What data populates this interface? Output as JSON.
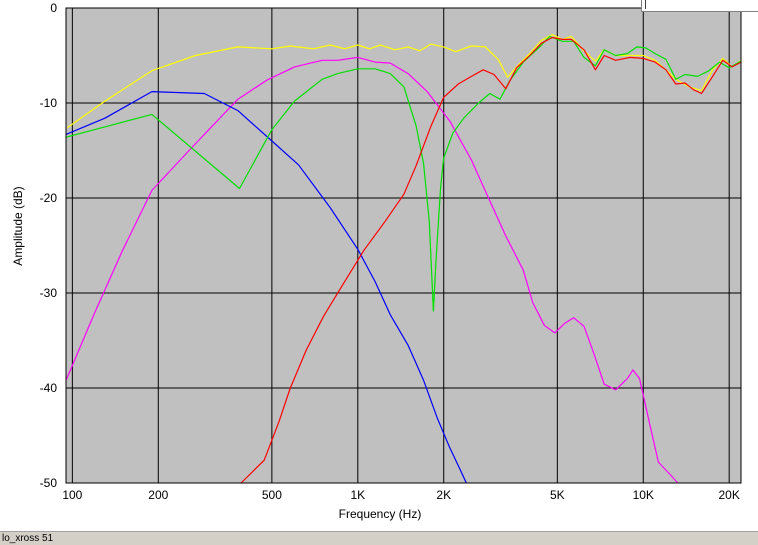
{
  "status": {
    "text": "lo_xross 51"
  },
  "chart_data": {
    "type": "line",
    "xlabel": "Frequency (Hz)",
    "ylabel": "Amplitude (dB)",
    "xscale": "log",
    "xlim": [
      95,
      22000
    ],
    "ylim": [
      -50,
      0
    ],
    "grid": true,
    "background": "#c0c0c0",
    "x_ticks": [
      {
        "value": 100,
        "label": "100"
      },
      {
        "value": 200,
        "label": "200"
      },
      {
        "value": 500,
        "label": "500"
      },
      {
        "value": 1000,
        "label": "1K"
      },
      {
        "value": 2000,
        "label": "2K"
      },
      {
        "value": 5000,
        "label": "5K"
      },
      {
        "value": 10000,
        "label": "10K"
      },
      {
        "value": 20000,
        "label": "20K"
      }
    ],
    "y_ticks": [
      {
        "value": 0,
        "label": "0"
      },
      {
        "value": -10,
        "label": "-10"
      },
      {
        "value": -20,
        "label": "-20"
      },
      {
        "value": -30,
        "label": "-30"
      },
      {
        "value": -40,
        "label": "-40"
      },
      {
        "value": -50,
        "label": "-50"
      }
    ],
    "series": [
      {
        "color": "#ffff00",
        "points": [
          [
            96,
            -12.6
          ],
          [
            130,
            -9.8
          ],
          [
            190,
            -6.6
          ],
          [
            270,
            -5.0
          ],
          [
            380,
            -4.1
          ],
          [
            500,
            -4.3
          ],
          [
            580,
            -4.0
          ],
          [
            700,
            -4.3
          ],
          [
            800,
            -3.9
          ],
          [
            900,
            -4.3
          ],
          [
            1000,
            -3.9
          ],
          [
            1100,
            -4.3
          ],
          [
            1200,
            -3.9
          ],
          [
            1350,
            -4.4
          ],
          [
            1500,
            -4.1
          ],
          [
            1650,
            -4.5
          ],
          [
            1800,
            -3.8
          ],
          [
            2000,
            -4.1
          ],
          [
            2200,
            -4.6
          ],
          [
            2500,
            -4.0
          ],
          [
            2800,
            -4.1
          ],
          [
            3100,
            -5.4
          ],
          [
            3350,
            -7.3
          ],
          [
            3600,
            -6.2
          ],
          [
            4000,
            -4.8
          ],
          [
            4400,
            -3.4
          ],
          [
            4800,
            -2.8
          ],
          [
            5200,
            -3.3
          ],
          [
            5600,
            -3.0
          ],
          [
            6200,
            -4.5
          ],
          [
            6800,
            -5.6
          ],
          [
            7300,
            -4.4
          ],
          [
            8000,
            -5.0
          ],
          [
            9000,
            -5.0
          ],
          [
            10000,
            -5.0
          ],
          [
            11000,
            -5.5
          ],
          [
            12000,
            -6.5
          ],
          [
            13000,
            -7.5
          ],
          [
            14500,
            -8.3
          ],
          [
            16000,
            -8.7
          ],
          [
            17500,
            -6.5
          ],
          [
            19000,
            -5.3
          ],
          [
            20500,
            -6.2
          ],
          [
            22000,
            -5.5
          ]
        ]
      },
      {
        "color": "#ff00ff",
        "points": [
          [
            95,
            -39.2
          ],
          [
            120,
            -32.0
          ],
          [
            150,
            -25.5
          ],
          [
            190,
            -19.2
          ],
          [
            260,
            -14.8
          ],
          [
            380,
            -9.6
          ],
          [
            480,
            -7.6
          ],
          [
            600,
            -6.2
          ],
          [
            750,
            -5.5
          ],
          [
            850,
            -5.5
          ],
          [
            1000,
            -5.2
          ],
          [
            1150,
            -5.7
          ],
          [
            1300,
            -5.8
          ],
          [
            1500,
            -6.9
          ],
          [
            1750,
            -8.8
          ],
          [
            2100,
            -11.9
          ],
          [
            2500,
            -16.0
          ],
          [
            2900,
            -20.3
          ],
          [
            3300,
            -24.0
          ],
          [
            3800,
            -27.6
          ],
          [
            4100,
            -31.0
          ],
          [
            4500,
            -33.4
          ],
          [
            4900,
            -34.2
          ],
          [
            5300,
            -33.2
          ],
          [
            5700,
            -32.6
          ],
          [
            6200,
            -33.5
          ],
          [
            6700,
            -36.3
          ],
          [
            7300,
            -39.6
          ],
          [
            8000,
            -40.2
          ],
          [
            8800,
            -39.0
          ],
          [
            9200,
            -38.1
          ],
          [
            9700,
            -39.0
          ],
          [
            10500,
            -43.6
          ],
          [
            11300,
            -47.8
          ],
          [
            12500,
            -49.2
          ],
          [
            13200,
            -50.0
          ]
        ]
      },
      {
        "color": "#0000ff",
        "points": [
          [
            95,
            -13.3
          ],
          [
            130,
            -11.6
          ],
          [
            190,
            -8.8
          ],
          [
            290,
            -9.0
          ],
          [
            380,
            -10.8
          ],
          [
            500,
            -14.0
          ],
          [
            620,
            -16.5
          ],
          [
            800,
            -21.0
          ],
          [
            1000,
            -25.4
          ],
          [
            1150,
            -28.8
          ],
          [
            1300,
            -32.3
          ],
          [
            1500,
            -35.5
          ],
          [
            1700,
            -39.2
          ],
          [
            1900,
            -43.2
          ],
          [
            2100,
            -46.3
          ],
          [
            2300,
            -48.8
          ],
          [
            2400,
            -50.0
          ]
        ]
      },
      {
        "color": "#00e000",
        "points": [
          [
            95,
            -13.6
          ],
          [
            190,
            -11.2
          ],
          [
            385,
            -19.0
          ],
          [
            500,
            -12.8
          ],
          [
            600,
            -9.8
          ],
          [
            750,
            -7.5
          ],
          [
            850,
            -6.9
          ],
          [
            1000,
            -6.4
          ],
          [
            1150,
            -6.4
          ],
          [
            1300,
            -6.9
          ],
          [
            1450,
            -8.3
          ],
          [
            1600,
            -12.4
          ],
          [
            1700,
            -16.4
          ],
          [
            1780,
            -22.5
          ],
          [
            1840,
            -31.9
          ],
          [
            1880,
            -26.4
          ],
          [
            1950,
            -18.9
          ],
          [
            2000,
            -15.8
          ],
          [
            2150,
            -13.2
          ],
          [
            2350,
            -11.6
          ],
          [
            2650,
            -10.0
          ],
          [
            2900,
            -9.0
          ],
          [
            3150,
            -9.6
          ],
          [
            3400,
            -7.7
          ],
          [
            3800,
            -5.7
          ],
          [
            4300,
            -4.2
          ],
          [
            4700,
            -3.0
          ],
          [
            5200,
            -3.5
          ],
          [
            5700,
            -3.5
          ],
          [
            6200,
            -5.2
          ],
          [
            6800,
            -6.1
          ],
          [
            7300,
            -4.4
          ],
          [
            8000,
            -5.0
          ],
          [
            8800,
            -4.8
          ],
          [
            9500,
            -4.1
          ],
          [
            10200,
            -4.2
          ],
          [
            11000,
            -4.8
          ],
          [
            12000,
            -5.4
          ],
          [
            13000,
            -7.5
          ],
          [
            14000,
            -7.0
          ],
          [
            15500,
            -7.2
          ],
          [
            17000,
            -6.6
          ],
          [
            18500,
            -5.7
          ],
          [
            20000,
            -6.3
          ],
          [
            22000,
            -5.6
          ]
        ]
      },
      {
        "color": "#ff0000",
        "points": [
          [
            390,
            -50.0
          ],
          [
            470,
            -47.6
          ],
          [
            530,
            -43.5
          ],
          [
            580,
            -40.0
          ],
          [
            660,
            -36.0
          ],
          [
            760,
            -32.4
          ],
          [
            900,
            -28.8
          ],
          [
            1050,
            -25.5
          ],
          [
            1250,
            -22.4
          ],
          [
            1450,
            -19.6
          ],
          [
            1600,
            -16.6
          ],
          [
            1800,
            -12.5
          ],
          [
            2000,
            -9.4
          ],
          [
            2250,
            -8.0
          ],
          [
            2500,
            -7.2
          ],
          [
            2750,
            -6.5
          ],
          [
            3000,
            -7.0
          ],
          [
            3300,
            -8.5
          ],
          [
            3600,
            -6.3
          ],
          [
            4000,
            -5.0
          ],
          [
            4400,
            -3.7
          ],
          [
            4800,
            -3.1
          ],
          [
            5200,
            -3.3
          ],
          [
            5600,
            -3.3
          ],
          [
            6200,
            -4.4
          ],
          [
            6800,
            -6.5
          ],
          [
            7300,
            -5.0
          ],
          [
            8000,
            -5.5
          ],
          [
            9000,
            -5.2
          ],
          [
            10000,
            -5.3
          ],
          [
            11000,
            -5.7
          ],
          [
            12000,
            -6.5
          ],
          [
            13000,
            -8.0
          ],
          [
            14000,
            -7.9
          ],
          [
            15000,
            -8.6
          ],
          [
            16000,
            -9.0
          ],
          [
            17500,
            -7.2
          ],
          [
            19000,
            -5.5
          ],
          [
            20500,
            -6.2
          ],
          [
            22000,
            -5.7
          ]
        ]
      }
    ]
  }
}
